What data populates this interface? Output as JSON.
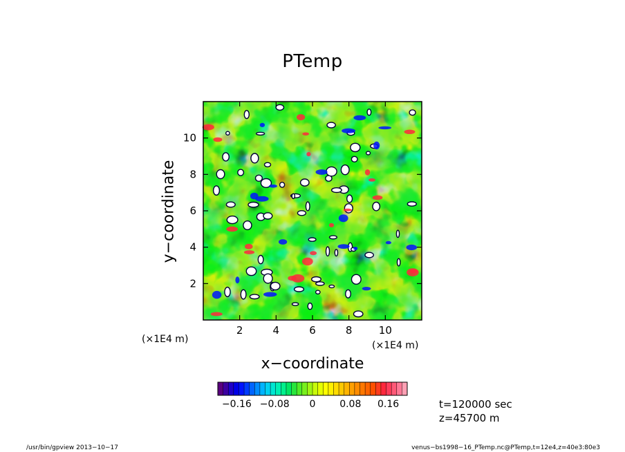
{
  "chart_data": {
    "type": "heatmap",
    "title": "PTemp",
    "xlabel": "x−coordinate",
    "ylabel": "y−coordinate",
    "x_unit": "(×1E4 m)",
    "y_unit": "(×1E4 m)",
    "xlim": [
      0,
      12
    ],
    "ylim": [
      0,
      12
    ],
    "x_ticks": [
      "2",
      "4",
      "6",
      "8",
      "10"
    ],
    "y_ticks": [
      "2",
      "4",
      "6",
      "8",
      "10"
    ],
    "x_tick_values": [
      2,
      4,
      6,
      8,
      10
    ],
    "y_tick_values": [
      2,
      4,
      6,
      8,
      10
    ],
    "colorbar": {
      "min": -0.2,
      "max": 0.2,
      "step": 0.01,
      "tick_labels": [
        "−0.16",
        "−0.08",
        "0",
        "0.08",
        "0.16"
      ],
      "tick_values": [
        -0.16,
        -0.08,
        0,
        0.08,
        0.16
      ],
      "colors": [
        "#5a007f",
        "#3c00a0",
        "#1e00c8",
        "#0000e6",
        "#0014ff",
        "#003cff",
        "#0064ff",
        "#008cff",
        "#00b4ff",
        "#00d2f0",
        "#00e6d2",
        "#00f0b4",
        "#00f08c",
        "#00e664",
        "#28e63c",
        "#50eb28",
        "#78f01e",
        "#a0f514",
        "#c8fa0a",
        "#e6ff00",
        "#ffff00",
        "#fff000",
        "#ffdc00",
        "#ffc800",
        "#ffb400",
        "#ffa000",
        "#ff8c00",
        "#ff7800",
        "#ff6400",
        "#ff5000",
        "#ff3c1e",
        "#ff283c",
        "#ff3c5a",
        "#ff5a78",
        "#ff7896",
        "#ffa0b4"
      ]
    }
  },
  "info": {
    "time": "t=120000 sec",
    "height": "z=45700 m"
  },
  "footer": {
    "left": "/usr/bin/gpview   2013−10−17",
    "right": "venus−bs1998−16_PTemp.nc@PTemp,t=12e4,z=40e3:80e3"
  }
}
